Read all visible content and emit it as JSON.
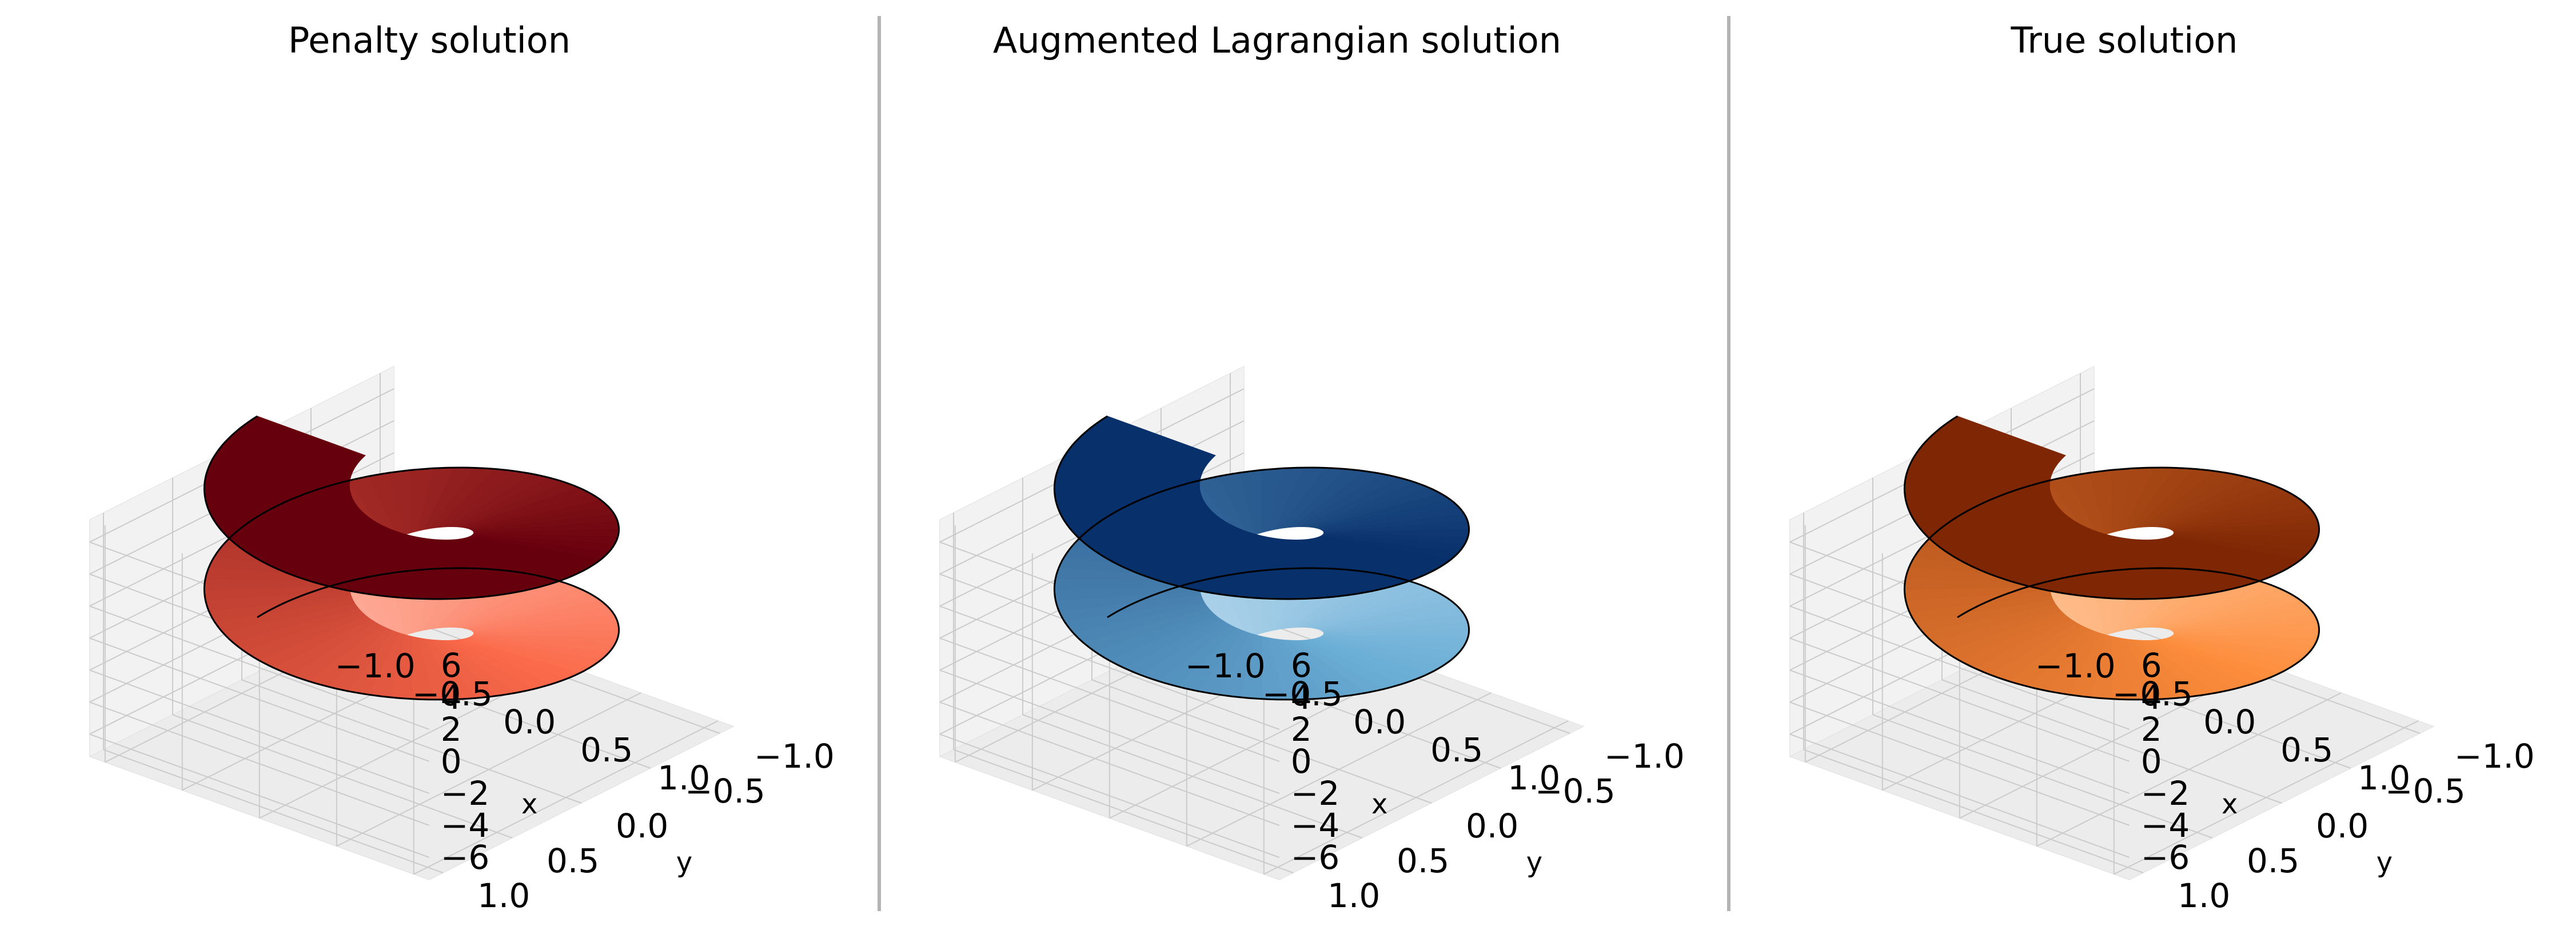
{
  "chart_data": [
    {
      "type": "surface3d",
      "title": "Penalty solution",
      "xlabel": "x",
      "ylabel": "y",
      "zlabel": "",
      "xlim": [
        -1.0,
        1.0
      ],
      "ylim": [
        -1.0,
        1.0
      ],
      "zlim": [
        -6.0,
        6.0
      ],
      "xticks": [
        "−1.0",
        "−0.5",
        "0.0",
        "0.5",
        "1.0"
      ],
      "yticks": [
        "−1.0",
        "−0.5",
        "0.0",
        "0.5",
        "1.0"
      ],
      "zticks": [
        "6",
        "4",
        "2",
        "0",
        "−2",
        "−4",
        "−6"
      ],
      "surface": "helicoid z = atan2(y, x) + 2πk, 0.3 ≤ r ≤ 1, two turns",
      "colormap": "Reds",
      "color_low": "#fff5f0",
      "color_mid": "#fb6a4a",
      "color_high": "#67000d",
      "grid": true
    },
    {
      "type": "surface3d",
      "title": "Augmented Lagrangian solution",
      "xlabel": "x",
      "ylabel": "y",
      "zlabel": "",
      "xlim": [
        -1.0,
        1.0
      ],
      "ylim": [
        -1.0,
        1.0
      ],
      "zlim": [
        -6.0,
        6.0
      ],
      "xticks": [
        "−1.0",
        "−0.5",
        "0.0",
        "0.5",
        "1.0"
      ],
      "yticks": [
        "−1.0",
        "−0.5",
        "0.0",
        "0.5",
        "1.0"
      ],
      "zticks": [
        "6",
        "4",
        "2",
        "0",
        "−2",
        "−4",
        "−6"
      ],
      "surface": "helicoid z = atan2(y, x) + 2πk, 0.3 ≤ r ≤ 1, two turns",
      "colormap": "Blues",
      "color_low": "#f7fbff",
      "color_mid": "#6baed6",
      "color_high": "#08306b",
      "grid": true
    },
    {
      "type": "surface3d",
      "title": "True solution",
      "xlabel": "x",
      "ylabel": "y",
      "zlabel": "",
      "xlim": [
        -1.0,
        1.0
      ],
      "ylim": [
        -1.0,
        1.0
      ],
      "zlim": [
        -6.0,
        6.0
      ],
      "xticks": [
        "−1.0",
        "−0.5",
        "0.0",
        "0.5",
        "1.0"
      ],
      "yticks": [
        "−1.0",
        "−0.5",
        "0.0",
        "0.5",
        "1.0"
      ],
      "zticks": [
        "6",
        "4",
        "2",
        "0",
        "−2",
        "−4",
        "−6"
      ],
      "surface": "helicoid z = atan2(y, x) + 2πk, 0.3 ≤ r ≤ 1, two turns",
      "colormap": "Oranges",
      "color_low": "#fff5eb",
      "color_mid": "#fd8d3c",
      "color_high": "#7f2704",
      "grid": true
    }
  ]
}
